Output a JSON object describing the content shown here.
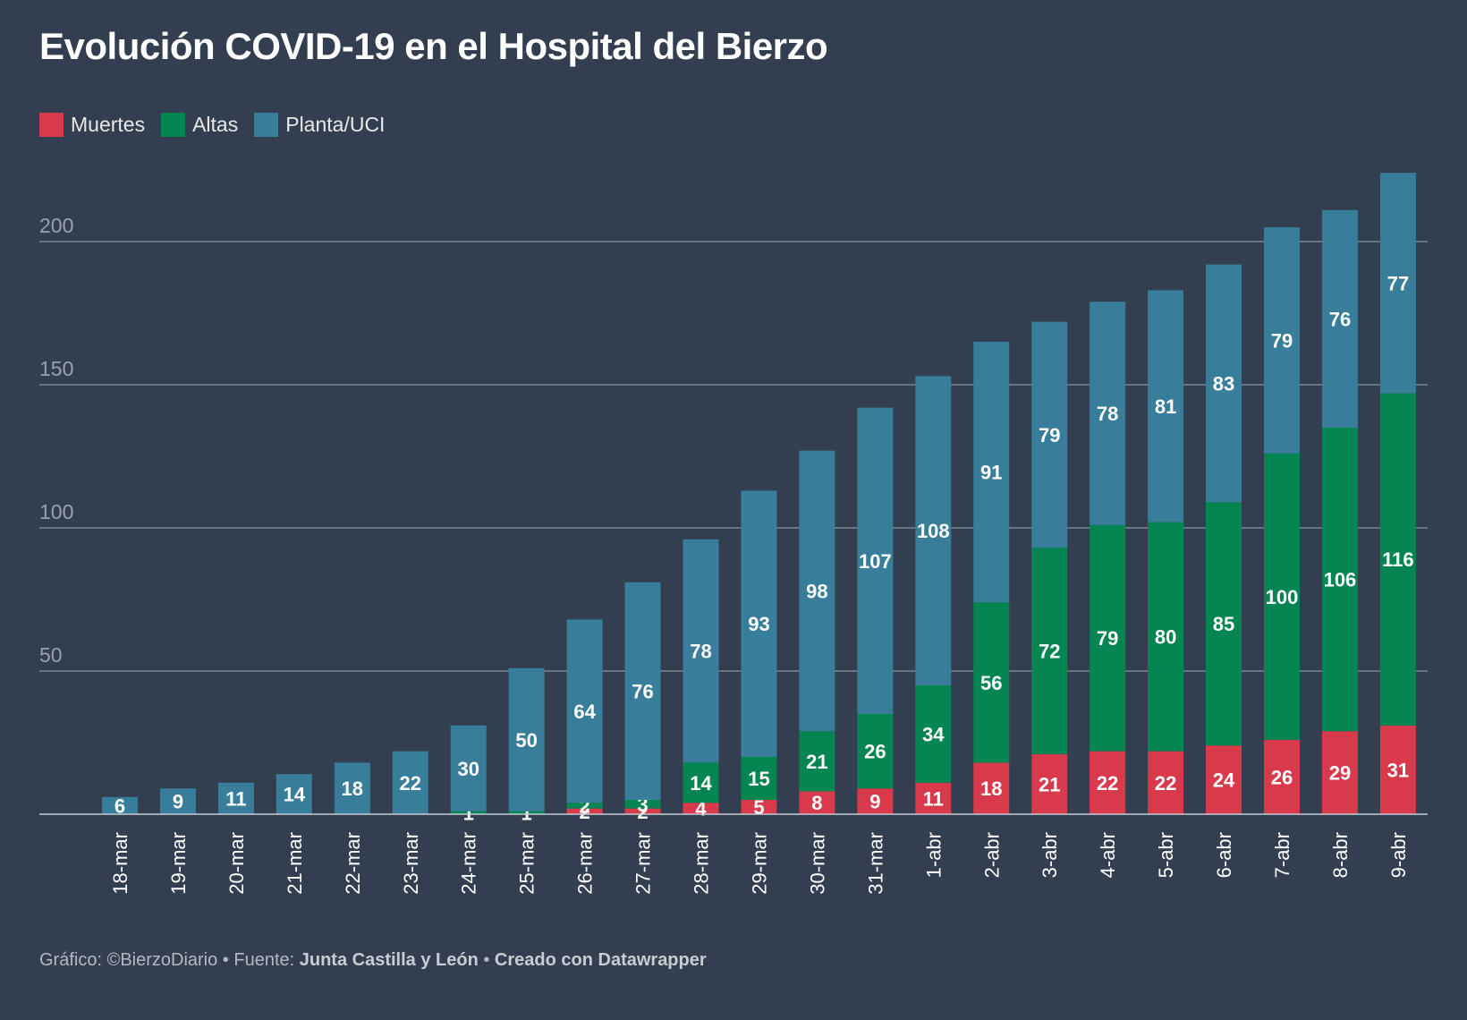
{
  "title": "Evolución COVID-19 en el Hospital del Bierzo",
  "footer": {
    "prefix": "Gráfico: ©BierzoDiario • Fuente: ",
    "source": "Junta Castilla y León",
    "separator": " • ",
    "created": "Creado con Datawrapper"
  },
  "chart_data": {
    "type": "bar",
    "stacked": true,
    "legend_position": "top-left",
    "grid": true,
    "ylim": [
      0,
      225
    ],
    "yticks": [
      50,
      100,
      150,
      200
    ],
    "categories": [
      "18-mar",
      "19-mar",
      "20-mar",
      "21-mar",
      "22-mar",
      "23-mar",
      "24-mar",
      "25-mar",
      "26-mar",
      "27-mar",
      "28-mar",
      "29-mar",
      "30-mar",
      "31-mar",
      "1-abr",
      "2-abr",
      "3-abr",
      "4-abr",
      "5-abr",
      "6-abr",
      "7-abr",
      "8-abr",
      "9-abr"
    ],
    "series": [
      {
        "name": "Muertes",
        "color": "#d8394b",
        "values": [
          0,
          0,
          0,
          0,
          0,
          0,
          0,
          0,
          2,
          2,
          4,
          5,
          8,
          9,
          11,
          18,
          21,
          22,
          22,
          24,
          26,
          29,
          31
        ]
      },
      {
        "name": "Altas",
        "color": "#048552",
        "values": [
          0,
          0,
          0,
          0,
          0,
          0,
          1,
          1,
          2,
          3,
          14,
          15,
          21,
          26,
          34,
          56,
          72,
          79,
          80,
          85,
          100,
          106,
          116
        ]
      },
      {
        "name": "Planta/UCI",
        "color": "#387d99",
        "values": [
          6,
          9,
          11,
          14,
          18,
          22,
          30,
          50,
          64,
          76,
          78,
          93,
          98,
          107,
          108,
          91,
          79,
          78,
          81,
          83,
          79,
          76,
          77
        ]
      }
    ]
  }
}
